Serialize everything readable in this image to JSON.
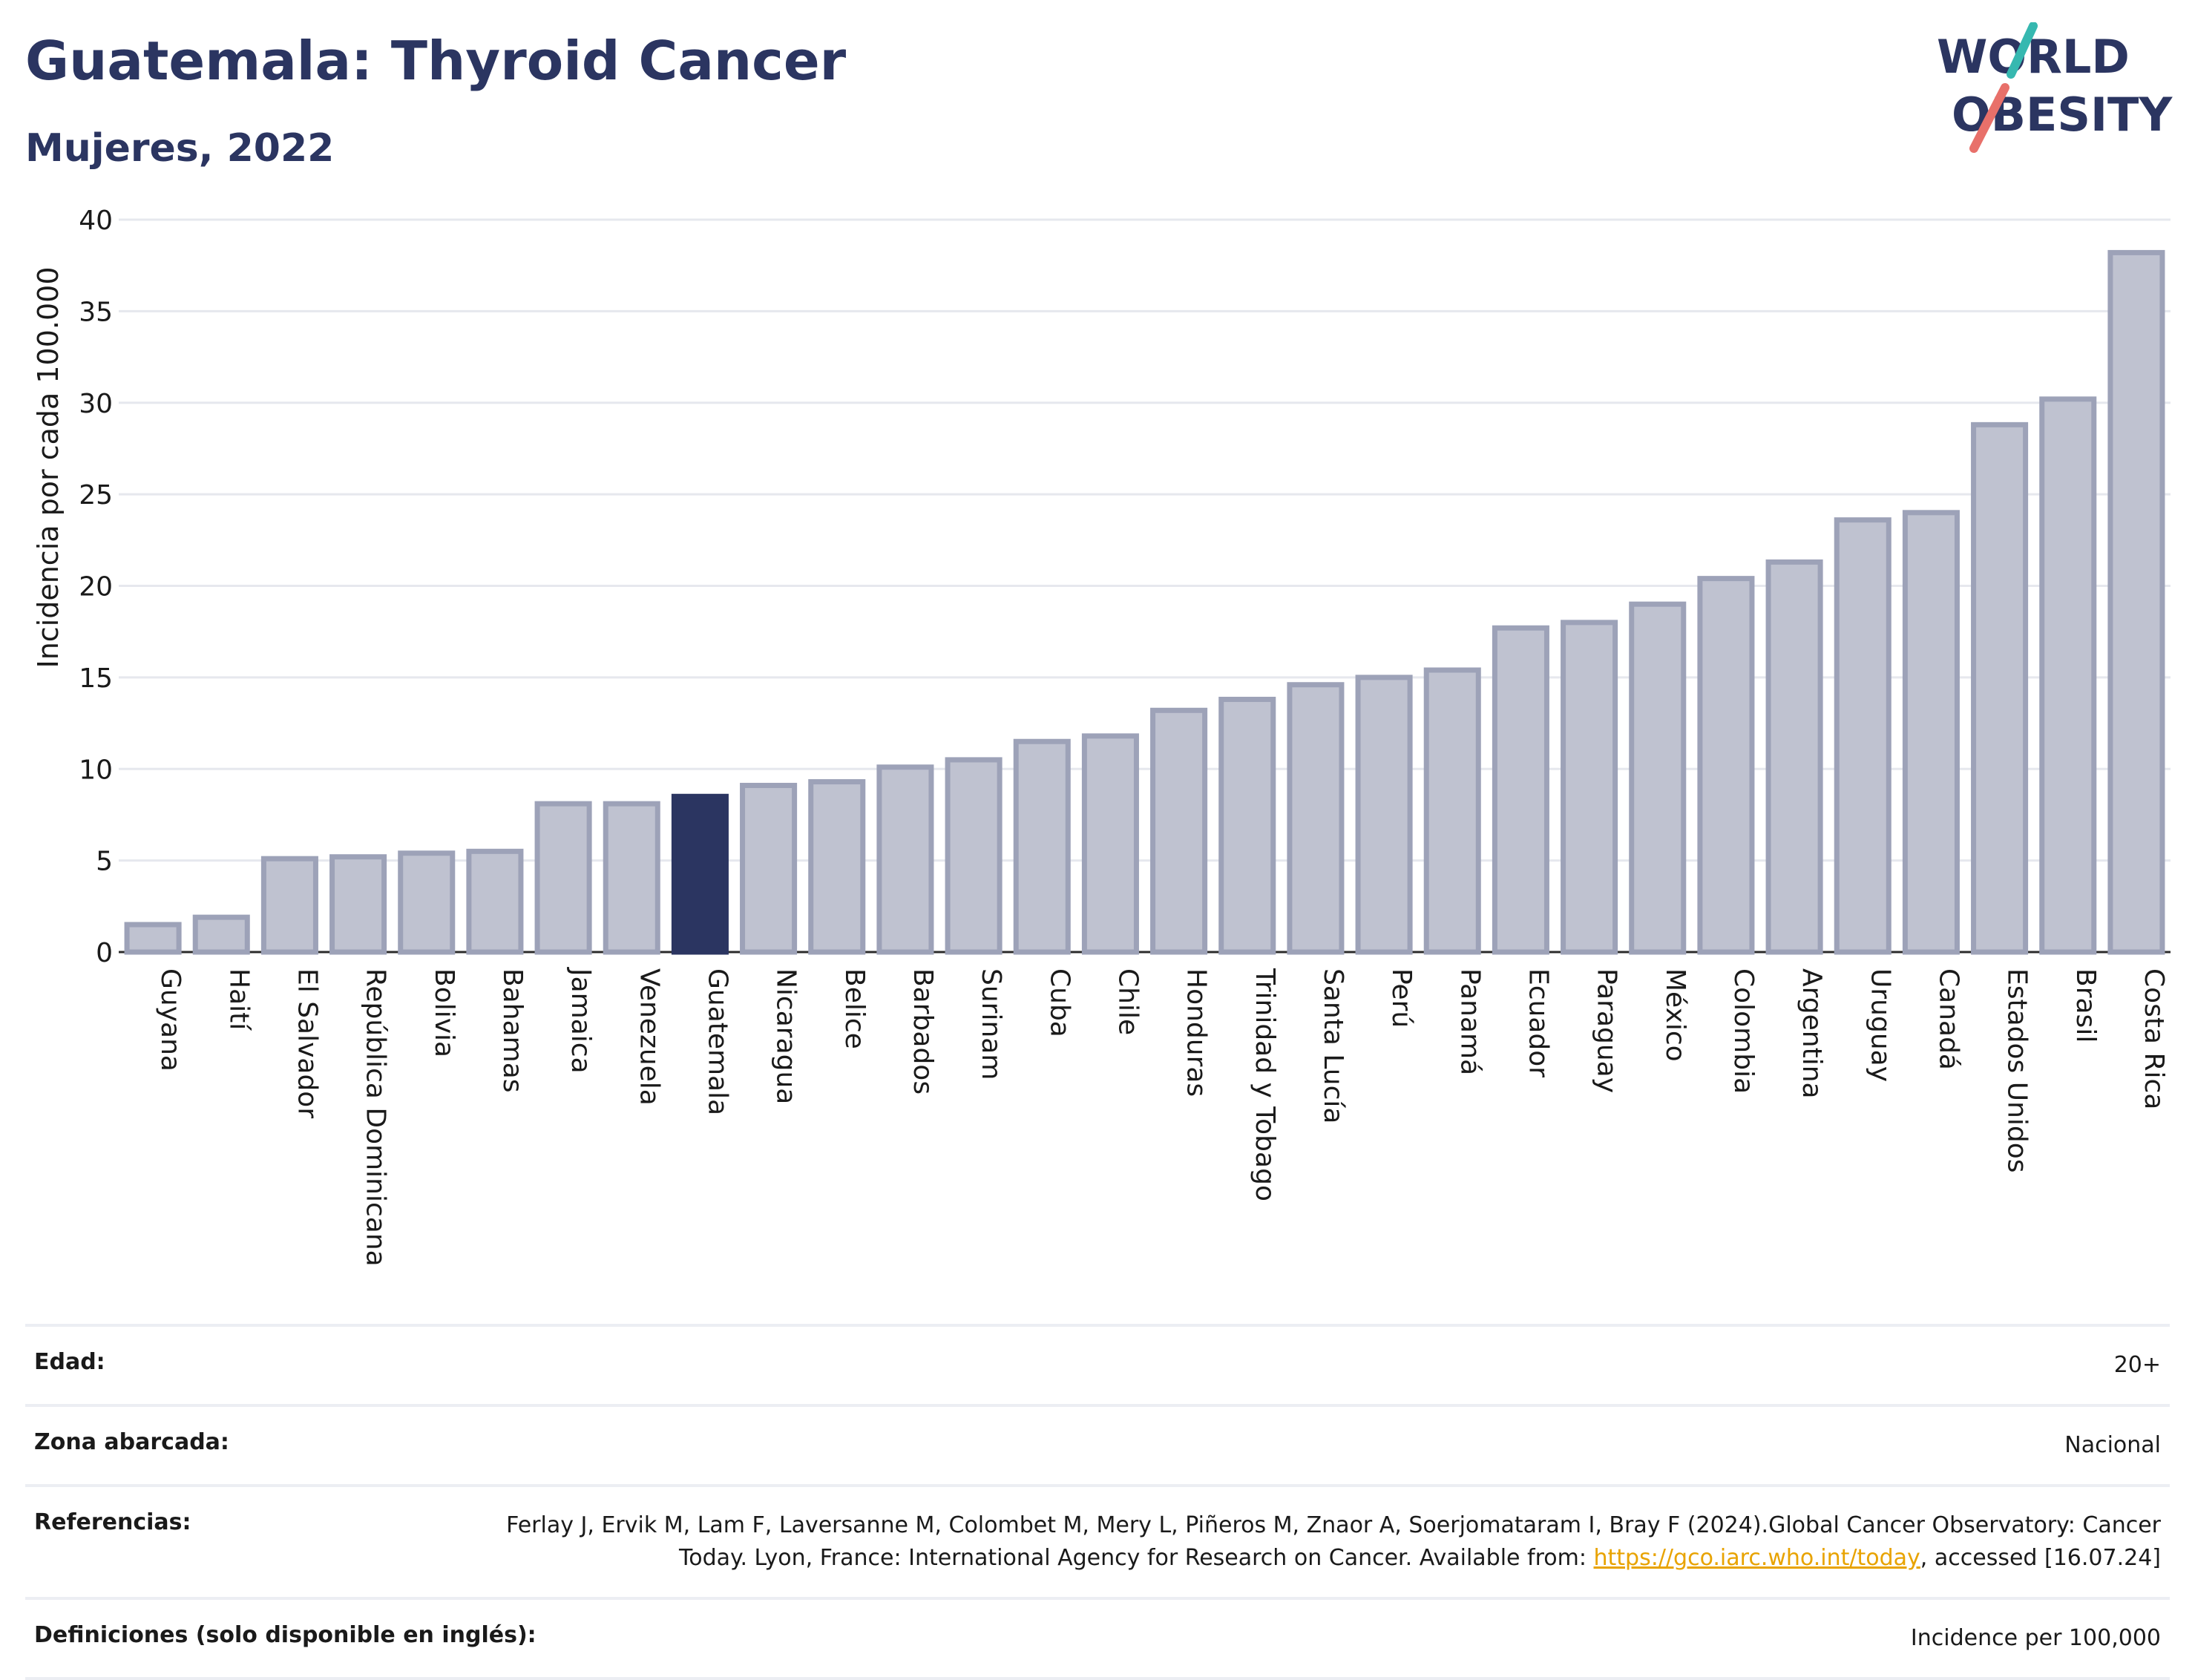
{
  "header": {
    "title": "Guatemala: Thyroid Cancer",
    "subtitle": "Mujeres, 2022",
    "logo_line1": "WORLD",
    "logo_line2": "OBESITY"
  },
  "chart_data": {
    "type": "bar",
    "ylabel": "Incidencia por cada 100.000",
    "ylim": [
      0,
      40
    ],
    "yticks": [
      0,
      5,
      10,
      15,
      20,
      25,
      30,
      35,
      40
    ],
    "grid": true,
    "highlight": "Guatemala",
    "colors": {
      "bar": "#bfc2d0",
      "bar_border": "#9da2b8",
      "highlight": "#2b3561"
    },
    "categories": [
      "Guyana",
      "Haití",
      "El Salvador",
      "República Dominicana",
      "Bolivia",
      "Bahamas",
      "Jamaica",
      "Venezuela",
      "Guatemala",
      "Nicaragua",
      "Belice",
      "Barbados",
      "Surinam",
      "Cuba",
      "Chile",
      "Honduras",
      "Trinidad y Tobago",
      "Santa Lucía",
      "Perú",
      "Panamá",
      "Ecuador",
      "Paraguay",
      "México",
      "Colombia",
      "Argentina",
      "Uruguay",
      "Canadá",
      "Estados Unidos",
      "Brasil",
      "Costa Rica"
    ],
    "values": [
      1.5,
      1.9,
      5.1,
      5.2,
      5.4,
      5.5,
      8.1,
      8.1,
      8.5,
      9.1,
      9.3,
      10.1,
      10.5,
      11.5,
      11.8,
      13.2,
      13.8,
      14.6,
      15.0,
      15.4,
      17.7,
      18.0,
      19.0,
      20.4,
      21.3,
      23.6,
      24.0,
      28.8,
      30.2,
      38.2
    ]
  },
  "meta": {
    "rows": [
      {
        "label": "Edad:",
        "value": "20+"
      },
      {
        "label": "Zona abarcada:",
        "value": "Nacional"
      },
      {
        "label": "Referencias:",
        "value_before": "Ferlay J, Ervik M, Lam F, Laversanne M, Colombet M, Mery L, Piñeros M, Znaor A, Soerjomataram I, Bray F (2024).Global Cancer Observatory: Cancer Today. Lyon, France: International Agency for Research on Cancer. Available from: ",
        "link": "https://gco.iarc.who.int/today",
        "value_after": ", accessed [16.07.24]"
      },
      {
        "label": "Definiciones (solo disponible en inglés):",
        "value": "Incidence per 100,000"
      }
    ]
  }
}
